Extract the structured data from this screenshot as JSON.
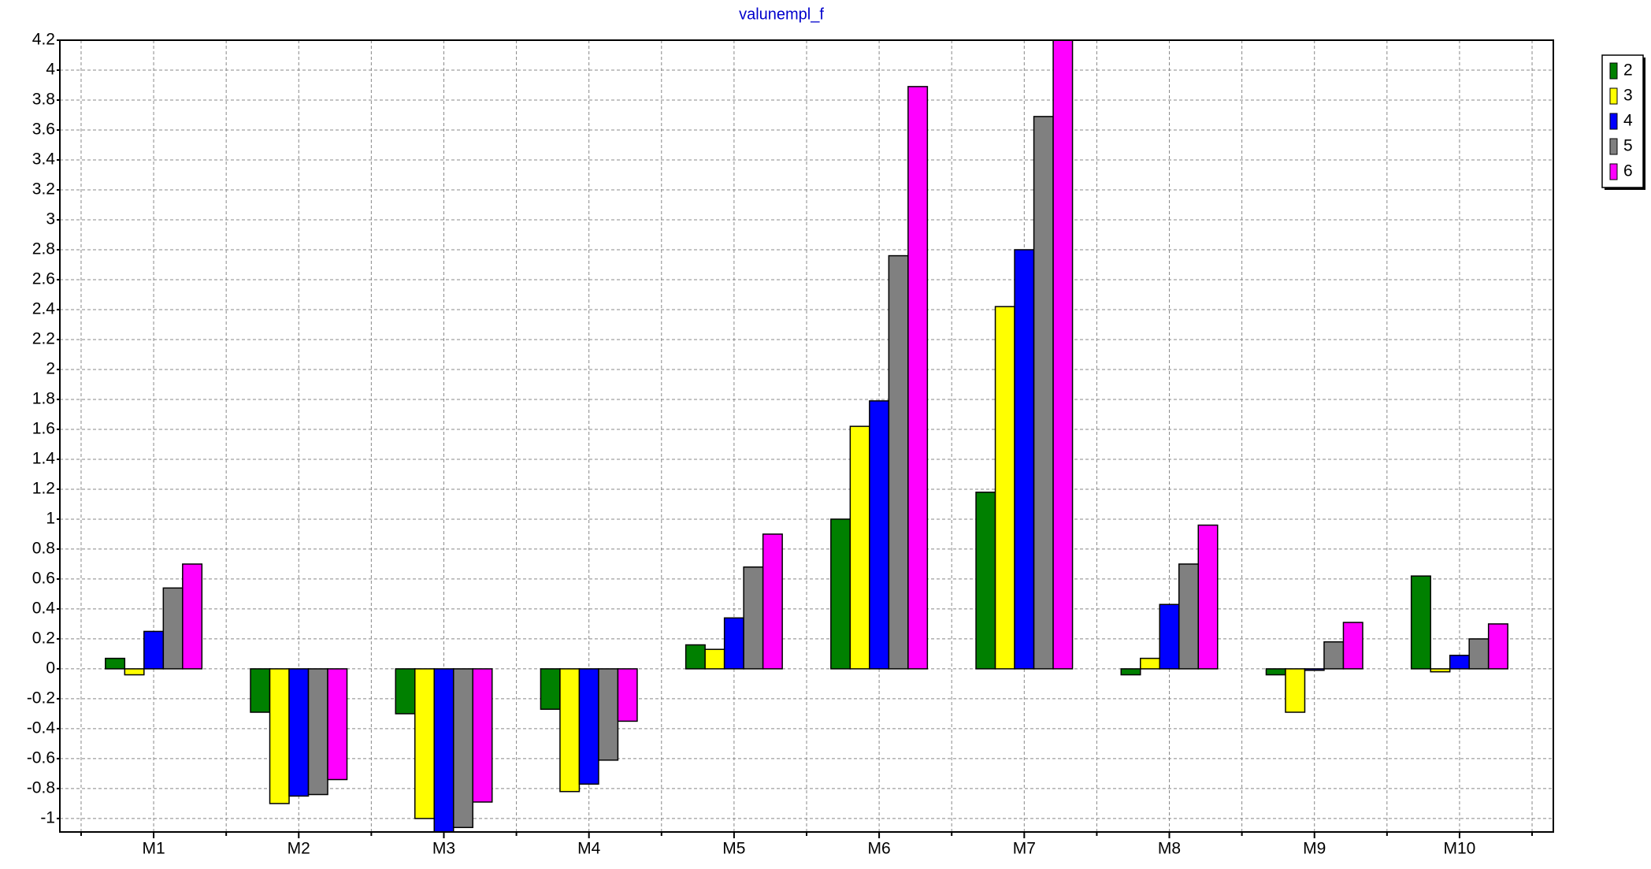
{
  "chart_data": {
    "type": "bar",
    "title": "valunempl_f",
    "categories": [
      "M1",
      "M2",
      "M3",
      "M4",
      "M5",
      "M6",
      "M7",
      "M8",
      "M9",
      "M10"
    ],
    "series": [
      {
        "name": "2",
        "color": "#008000",
        "values": [
          0.07,
          -0.29,
          -0.3,
          -0.27,
          0.16,
          1.0,
          1.18,
          -0.04,
          -0.04,
          0.62
        ]
      },
      {
        "name": "3",
        "color": "#ffff00",
        "values": [
          -0.04,
          -0.9,
          -1.0,
          -0.82,
          0.13,
          1.62,
          2.42,
          0.07,
          -0.29,
          -0.02
        ]
      },
      {
        "name": "4",
        "color": "#0000ff",
        "values": [
          0.25,
          -0.85,
          -1.09,
          -0.77,
          0.34,
          1.79,
          2.8,
          0.43,
          -0.01,
          0.09
        ]
      },
      {
        "name": "5",
        "color": "#808080",
        "values": [
          0.54,
          -0.84,
          -1.06,
          -0.61,
          0.68,
          2.76,
          3.69,
          0.7,
          0.18,
          0.2
        ]
      },
      {
        "name": "6",
        "color": "#ff00ff",
        "values": [
          0.7,
          -0.74,
          -0.89,
          -0.35,
          0.9,
          3.89,
          4.2,
          0.96,
          0.31,
          0.3
        ]
      }
    ],
    "ylim": [
      -1.09,
      4.2
    ],
    "yticks": [
      -1,
      -0.8,
      -0.6,
      -0.4,
      -0.2,
      0,
      0.2,
      0.4,
      0.6,
      0.8,
      1,
      1.2,
      1.4,
      1.6,
      1.8,
      2,
      2.2,
      2.4,
      2.6,
      2.8,
      3,
      3.2,
      3.4,
      3.6,
      3.8,
      4,
      4.2
    ],
    "grid": true,
    "legend": "top-right"
  }
}
